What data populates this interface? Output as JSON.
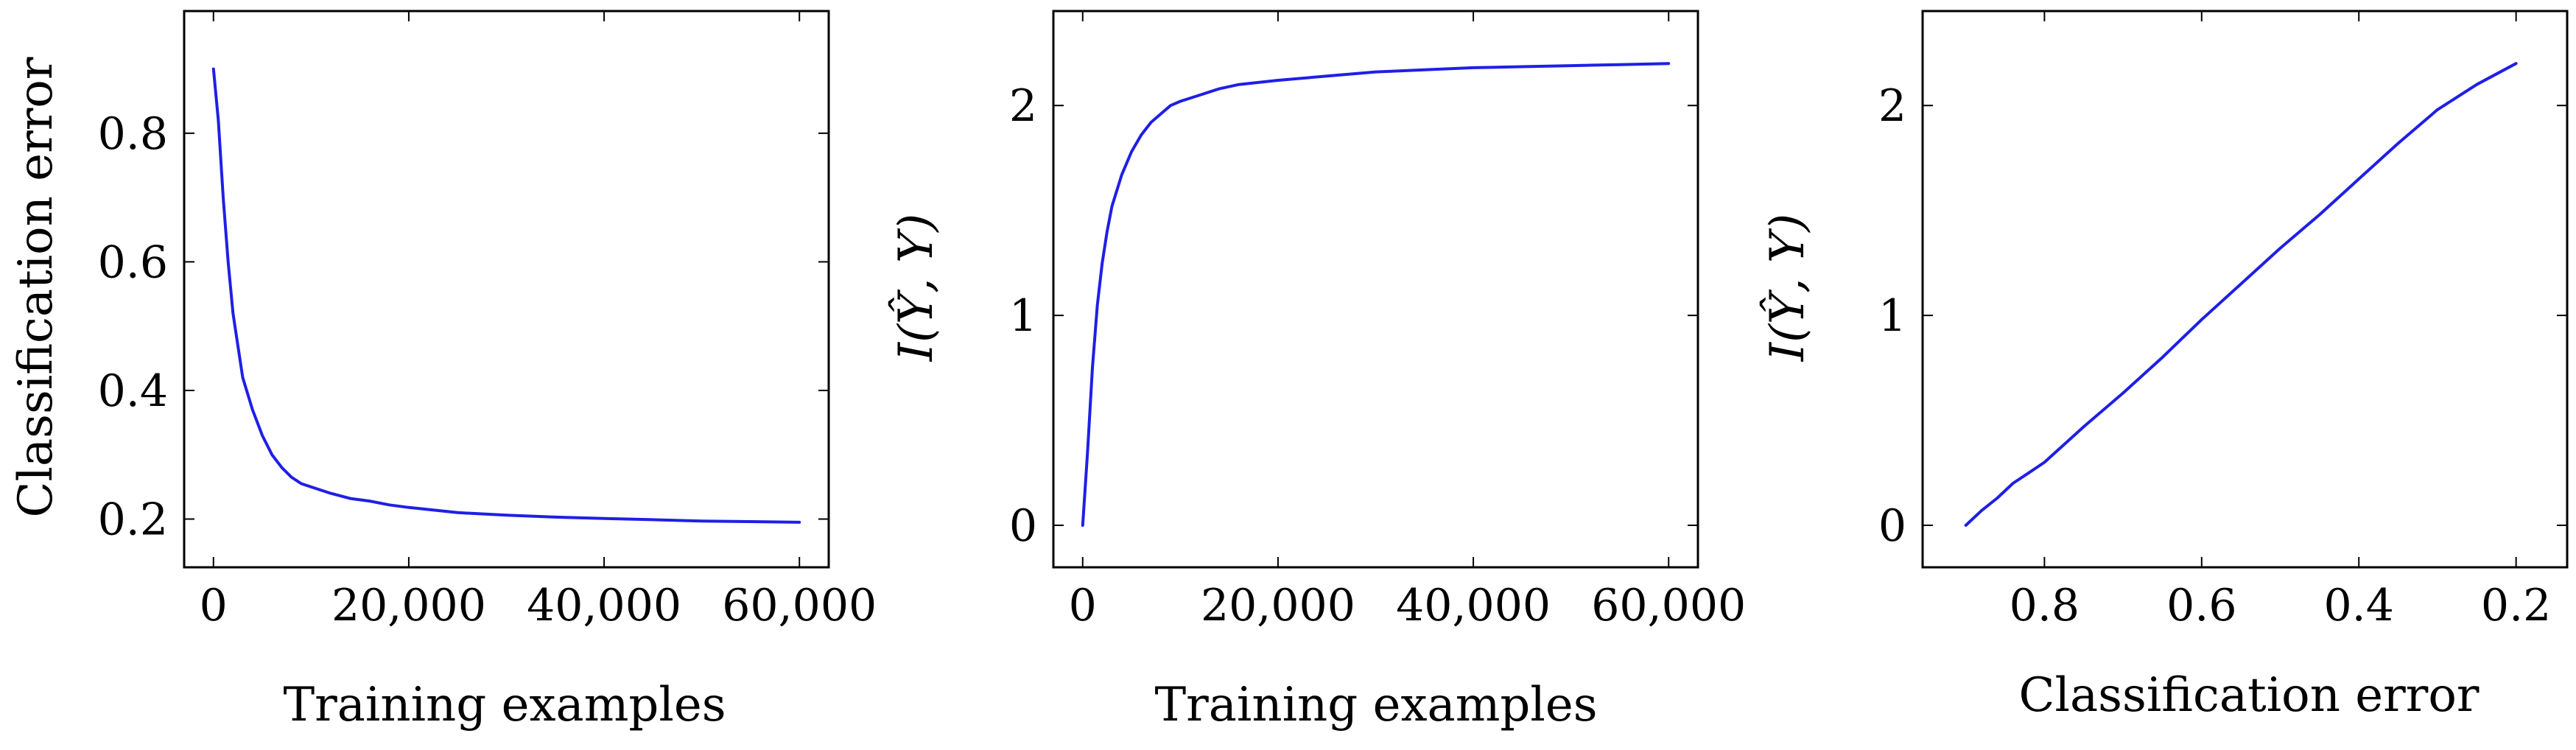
{
  "chart_data": [
    {
      "type": "line",
      "title": "",
      "xlabel": "Training examples",
      "ylabel": "Classification error",
      "xlim": [
        -3000,
        63000
      ],
      "ylim": [
        0.125,
        0.99
      ],
      "xticks": [
        0,
        20000,
        40000,
        60000
      ],
      "xtick_labels": [
        "0",
        "20,000",
        "40,000",
        "60,000"
      ],
      "yticks": [
        0.2,
        0.4,
        0.6,
        0.8
      ],
      "ytick_labels": [
        "0.2",
        "0.4",
        "0.6",
        "0.8"
      ],
      "grid": false,
      "series": [
        {
          "color": "#1f1fe6",
          "x": [
            0,
            500,
            1000,
            1500,
            2000,
            2500,
            3000,
            4000,
            5000,
            6000,
            7000,
            8000,
            9000,
            10000,
            12000,
            14000,
            16000,
            18000,
            20000,
            25000,
            30000,
            35000,
            40000,
            45000,
            50000,
            55000,
            60000
          ],
          "y": [
            0.9,
            0.82,
            0.7,
            0.6,
            0.52,
            0.47,
            0.42,
            0.37,
            0.33,
            0.3,
            0.28,
            0.265,
            0.255,
            0.25,
            0.24,
            0.232,
            0.228,
            0.222,
            0.218,
            0.21,
            0.206,
            0.203,
            0.201,
            0.199,
            0.197,
            0.196,
            0.195
          ]
        }
      ]
    },
    {
      "type": "line",
      "title": "",
      "xlabel": "Training examples",
      "ylabel": "I(Ŷ, Y)",
      "xlim": [
        -3000,
        63000
      ],
      "ylim": [
        -0.2,
        2.45
      ],
      "xticks": [
        0,
        20000,
        40000,
        60000
      ],
      "xtick_labels": [
        "0",
        "20,000",
        "40,000",
        "60,000"
      ],
      "yticks": [
        0,
        1,
        2
      ],
      "ytick_labels": [
        "0",
        "1",
        "2"
      ],
      "grid": false,
      "series": [
        {
          "color": "#1f1fe6",
          "x": [
            0,
            500,
            1000,
            1500,
            2000,
            2500,
            3000,
            4000,
            5000,
            6000,
            7000,
            8000,
            9000,
            10000,
            12000,
            14000,
            16000,
            18000,
            20000,
            25000,
            30000,
            35000,
            40000,
            45000,
            50000,
            55000,
            60000
          ],
          "y": [
            0.0,
            0.35,
            0.75,
            1.05,
            1.25,
            1.4,
            1.52,
            1.67,
            1.78,
            1.86,
            1.92,
            1.96,
            2.0,
            2.02,
            2.05,
            2.08,
            2.1,
            2.11,
            2.12,
            2.14,
            2.16,
            2.17,
            2.18,
            2.185,
            2.19,
            2.195,
            2.2
          ]
        }
      ]
    },
    {
      "type": "line",
      "title": "",
      "xlabel": "Classification error",
      "ylabel": "I(Ŷ, Y)",
      "xlim": [
        0.955,
        0.135
      ],
      "ylim": [
        -0.2,
        2.45
      ],
      "xticks": [
        0.8,
        0.6,
        0.4,
        0.2
      ],
      "xtick_labels": [
        "0.8",
        "0.6",
        "0.4",
        "0.2"
      ],
      "yticks": [
        0,
        1,
        2
      ],
      "ytick_labels": [
        "0",
        "1",
        "2"
      ],
      "grid": false,
      "series": [
        {
          "color": "#1f1fe6",
          "x": [
            0.9,
            0.88,
            0.86,
            0.84,
            0.82,
            0.8,
            0.75,
            0.7,
            0.65,
            0.6,
            0.55,
            0.5,
            0.45,
            0.4,
            0.35,
            0.3,
            0.25,
            0.2
          ],
          "y": [
            0.0,
            0.07,
            0.13,
            0.2,
            0.25,
            0.3,
            0.47,
            0.63,
            0.8,
            0.98,
            1.15,
            1.32,
            1.48,
            1.65,
            1.82,
            1.98,
            2.1,
            2.2
          ]
        }
      ]
    }
  ]
}
